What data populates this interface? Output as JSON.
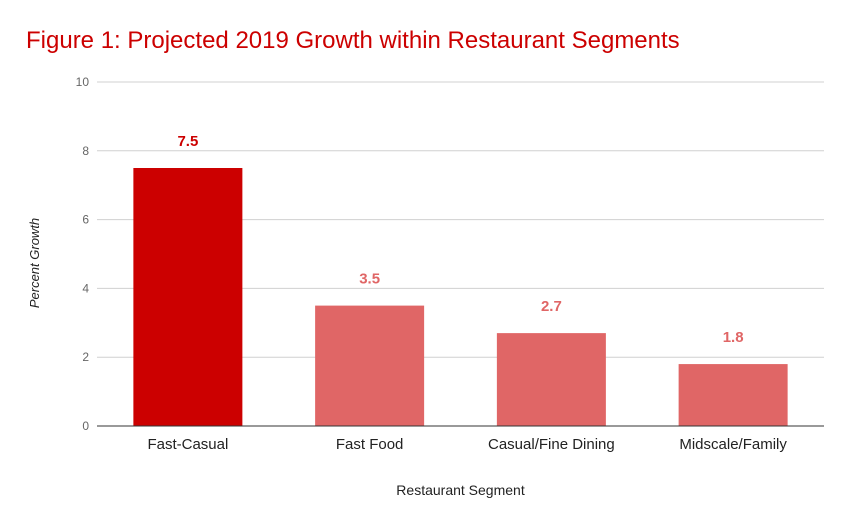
{
  "chart_data": {
    "type": "bar",
    "title": "Figure 1: Projected 2019 Growth within Restaurant Segments",
    "xlabel": "Restaurant Segment",
    "ylabel": "Percent Growth",
    "categories": [
      "Fast-Casual",
      "Fast Food",
      "Casual/Fine Dining",
      "Midscale/Family"
    ],
    "values": [
      7.5,
      3.5,
      2.7,
      1.8
    ],
    "data_labels": [
      "7.5",
      "3.5",
      "2.7",
      "1.8"
    ],
    "ylim": [
      0,
      10
    ],
    "yticks": [
      0,
      2,
      4,
      6,
      8,
      10
    ],
    "grid": true,
    "legend": "none",
    "bar_colors": [
      "#cc0000",
      "#e06666",
      "#e06666",
      "#e06666"
    ]
  }
}
